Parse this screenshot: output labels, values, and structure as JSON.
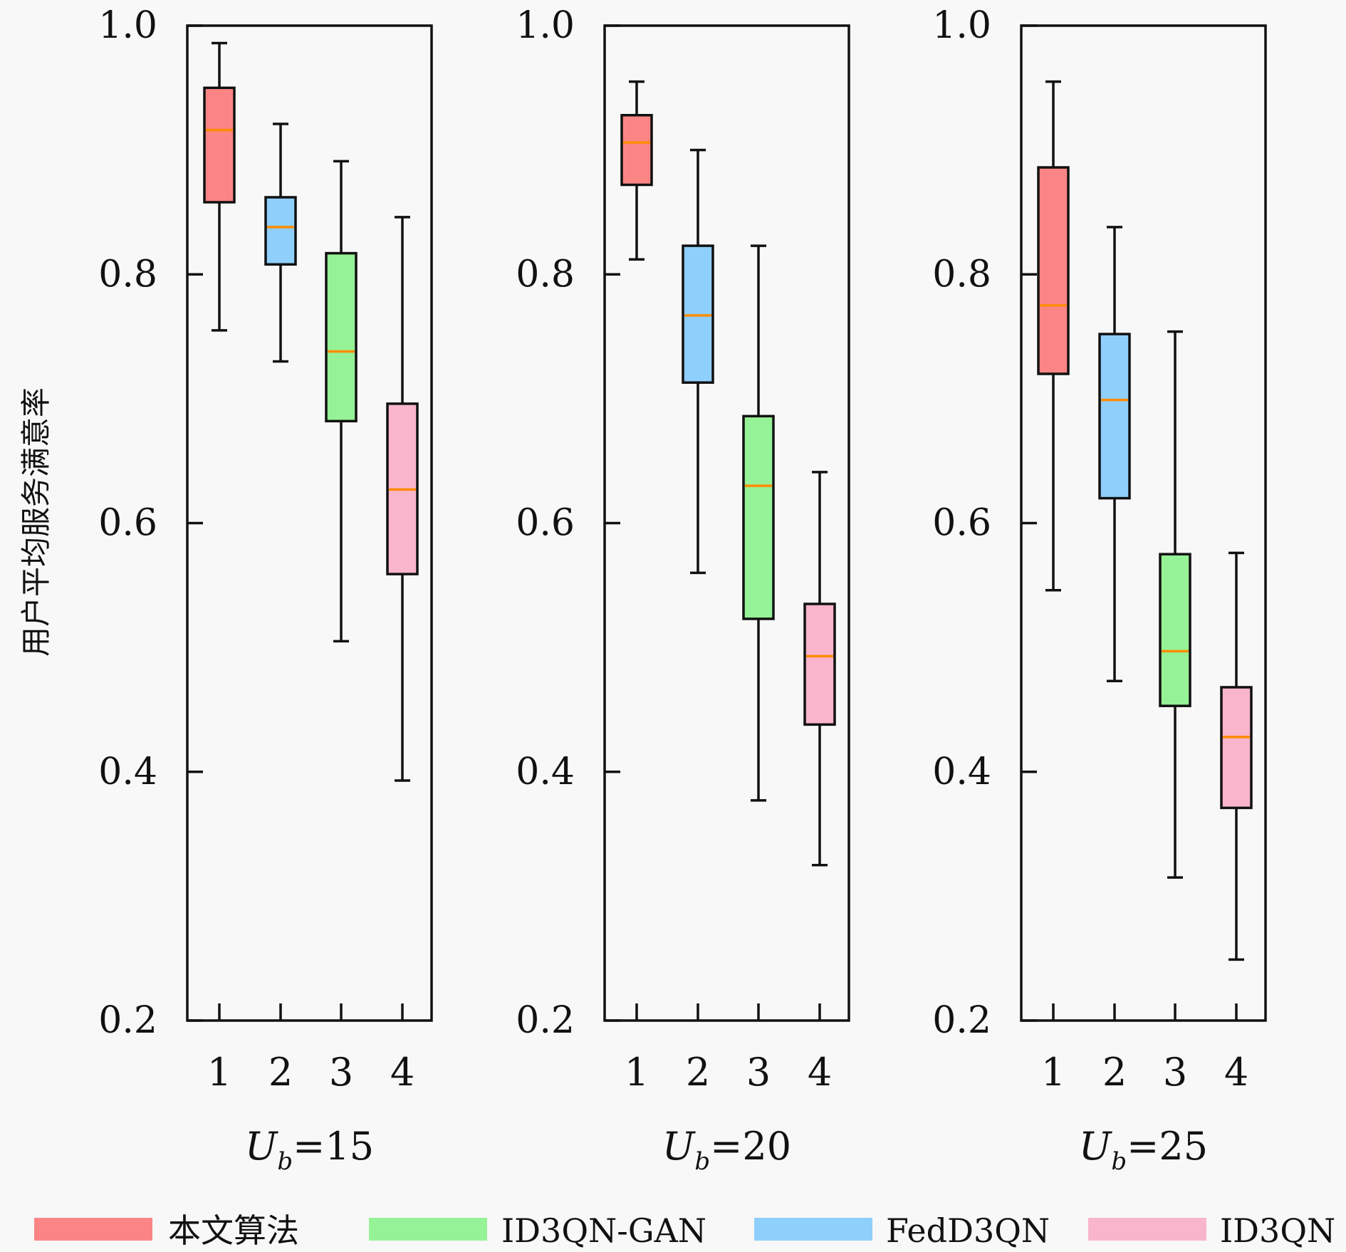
{
  "chart_data": {
    "type": "box",
    "ylabel": "用户平均服务满意率",
    "ylim": [
      0.2,
      1.0
    ],
    "yticks": [
      "0.2",
      "0.4",
      "0.6",
      "0.8",
      "1.0"
    ],
    "categories": [
      "1",
      "2",
      "3",
      "4"
    ],
    "median_color": "#ff8c00",
    "panels": [
      {
        "label_var": "U",
        "label_sub": "b",
        "label_value": "=15",
        "boxes": [
          {
            "category": "1",
            "whisker_low": 0.755,
            "q1": 0.858,
            "median": 0.916,
            "q3": 0.95,
            "whisker_high": 0.986
          },
          {
            "category": "2",
            "whisker_low": 0.73,
            "q1": 0.808,
            "median": 0.838,
            "q3": 0.862,
            "whisker_high": 0.921
          },
          {
            "category": "3",
            "whisker_low": 0.505,
            "q1": 0.682,
            "median": 0.738,
            "q3": 0.817,
            "whisker_high": 0.891
          },
          {
            "category": "4",
            "whisker_low": 0.393,
            "q1": 0.559,
            "median": 0.627,
            "q3": 0.696,
            "whisker_high": 0.846
          }
        ]
      },
      {
        "label_var": "U",
        "label_sub": "b",
        "label_value": "=20",
        "boxes": [
          {
            "category": "1",
            "whisker_low": 0.812,
            "q1": 0.872,
            "median": 0.906,
            "q3": 0.928,
            "whisker_high": 0.955
          },
          {
            "category": "2",
            "whisker_low": 0.56,
            "q1": 0.713,
            "median": 0.767,
            "q3": 0.823,
            "whisker_high": 0.9
          },
          {
            "category": "3",
            "whisker_low": 0.377,
            "q1": 0.523,
            "median": 0.63,
            "q3": 0.686,
            "whisker_high": 0.823
          },
          {
            "category": "4",
            "whisker_low": 0.325,
            "q1": 0.438,
            "median": 0.493,
            "q3": 0.535,
            "whisker_high": 0.641
          }
        ]
      },
      {
        "label_var": "U",
        "label_sub": "b",
        "label_value": "=25",
        "boxes": [
          {
            "category": "1",
            "whisker_low": 0.546,
            "q1": 0.72,
            "median": 0.775,
            "q3": 0.886,
            "whisker_high": 0.955
          },
          {
            "category": "2",
            "whisker_low": 0.473,
            "q1": 0.62,
            "median": 0.699,
            "q3": 0.752,
            "whisker_high": 0.838
          },
          {
            "category": "3",
            "whisker_low": 0.315,
            "q1": 0.453,
            "median": 0.497,
            "q3": 0.575,
            "whisker_high": 0.754
          },
          {
            "category": "4",
            "whisker_low": 0.249,
            "q1": 0.371,
            "median": 0.428,
            "q3": 0.468,
            "whisker_high": 0.576
          }
        ]
      }
    ],
    "legend": [
      {
        "label": "本文算法",
        "color": "#fb8585"
      },
      {
        "label": "ID3QN-GAN",
        "color": "#96f296"
      },
      {
        "label": "FedD3QN",
        "color": "#8fcffb"
      },
      {
        "label": "ID3QN",
        "color": "#f9b5cb"
      }
    ],
    "box_colors": [
      "#fb8585",
      "#8fcffb",
      "#96f296",
      "#f9b5cb"
    ],
    "legend_placement": "bottom"
  }
}
